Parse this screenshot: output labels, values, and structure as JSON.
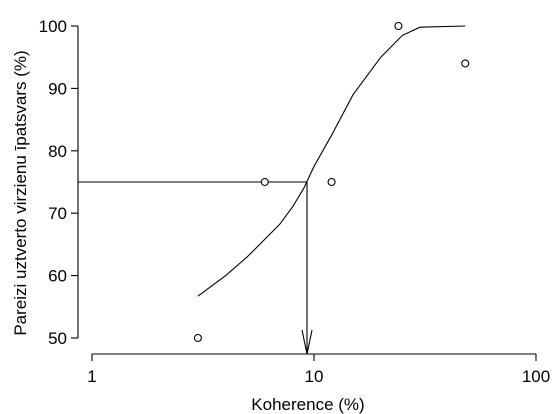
{
  "chart_data": {
    "type": "scatter",
    "xlabel": "Koherence (%)",
    "ylabel": "Pareizi uztverto virzienu īpatsvars (%)",
    "x_scale": "log",
    "xlim": [
      1,
      100
    ],
    "ylim": [
      50,
      100
    ],
    "x_ticks": [
      1,
      10,
      100
    ],
    "x_tick_labels": [
      "1",
      "10",
      "100"
    ],
    "y_ticks": [
      50,
      60,
      70,
      80,
      90,
      100
    ],
    "y_tick_labels": [
      "50",
      "60",
      "70",
      "80",
      "90",
      "100"
    ],
    "series": [
      {
        "points": [
          {
            "x": 3,
            "y": 50
          },
          {
            "x": 6,
            "y": 75
          },
          {
            "x": 12,
            "y": 75
          },
          {
            "x": 24,
            "y": 100
          },
          {
            "x": 48,
            "y": 94
          }
        ]
      }
    ],
    "fit_curve": [
      {
        "x": 3,
        "y": 56.7
      },
      {
        "x": 4,
        "y": 60
      },
      {
        "x": 5,
        "y": 63
      },
      {
        "x": 6,
        "y": 65.8
      },
      {
        "x": 7,
        "y": 68.2
      },
      {
        "x": 8,
        "y": 71
      },
      {
        "x": 9,
        "y": 74
      },
      {
        "x": 10,
        "y": 77.5
      },
      {
        "x": 12,
        "y": 82.5
      },
      {
        "x": 15,
        "y": 89
      },
      {
        "x": 20,
        "y": 95
      },
      {
        "x": 25,
        "y": 98.5
      },
      {
        "x": 30,
        "y": 99.8
      },
      {
        "x": 48,
        "y": 100
      }
    ],
    "threshold": {
      "x": 9.3,
      "y": 75
    },
    "grid": false,
    "legend": "none"
  }
}
